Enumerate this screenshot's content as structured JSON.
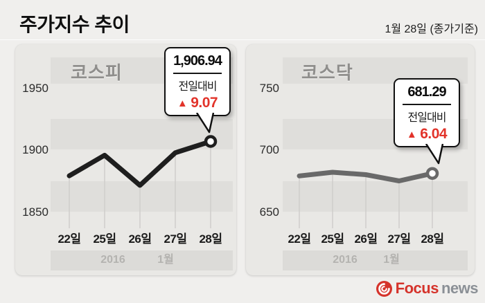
{
  "header": {
    "title": "주가지수 추이",
    "date_note": "1월 28일 (종가기준)"
  },
  "chart_data": [
    {
      "type": "line",
      "title": "코스피",
      "x_labels": [
        "22일",
        "25일",
        "26일",
        "27일",
        "28일"
      ],
      "values": [
        1879.4,
        1895.9,
        1871.7,
        1897.9,
        1906.94
      ],
      "y_ticks": [
        1950,
        1900,
        1850
      ],
      "ylim": [
        1836,
        1963
      ],
      "period": {
        "year": "2016",
        "month": "1월"
      },
      "line_color": "#1e1e1e",
      "grid": "horizontal-bands",
      "callout": {
        "value": "1,906.94",
        "label": "전일대비",
        "direction": "up",
        "up_triangle": "▲",
        "delta": "9.07"
      }
    },
    {
      "type": "line",
      "title": "코스닥",
      "x_labels": [
        "22일",
        "25일",
        "26일",
        "27일",
        "28일"
      ],
      "values": [
        679.3,
        682.2,
        680.3,
        675.3,
        681.29
      ],
      "y_ticks": [
        750,
        700,
        650
      ],
      "ylim": [
        636,
        763
      ],
      "period": {
        "year": "2016",
        "month": "1월"
      },
      "line_color": "#696969",
      "grid": "horizontal-bands",
      "callout": {
        "value": "681.29",
        "label": "전일대비",
        "direction": "up",
        "up_triangle": "▲",
        "delta": "6.04"
      }
    }
  ],
  "footer": {
    "brand_focus": "Focus",
    "brand_news": "news"
  },
  "colors": {
    "accent_red": "#e2332a",
    "logo_red": "#d5332b",
    "logo_gray": "#8b9096",
    "stripe_dark": "#dfdedb",
    "panel_bg": "#e9e8e5"
  }
}
